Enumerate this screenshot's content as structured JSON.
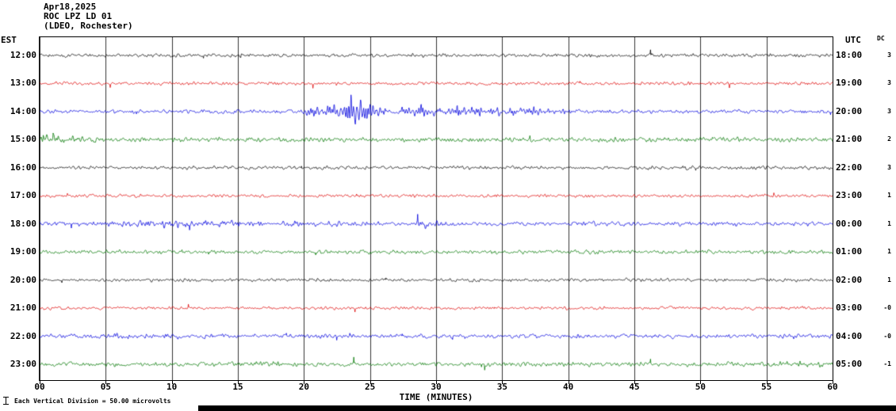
{
  "header": {
    "date": "Apr18,2025",
    "station": "ROC LPZ LD 01",
    "network": "(LDEO, Rochester)"
  },
  "axes": {
    "left_label": "EST",
    "right_label": "UTC",
    "dc_label": "DC",
    "x_label": "TIME (MINUTES)",
    "x_ticks": [
      "00",
      "05",
      "10",
      "15",
      "20",
      "25",
      "30",
      "35",
      "40",
      "45",
      "50",
      "55",
      "60"
    ]
  },
  "footer": {
    "scale_note": "Each Vertical Division =   50.00 microvolts"
  },
  "icons": {
    "scale_marker": "vertical-scale-division-bar"
  },
  "colors": {
    "black": "#000000",
    "red": "#dd0000",
    "blue": "#0000dd",
    "green": "#007700",
    "grid": "#333333"
  },
  "chart_data": {
    "type": "line",
    "title": "ROC LPZ LD 01 helicorder, Apr18,2025 (LDEO, Rochester)",
    "xlabel": "TIME (MINUTES)",
    "x_range_minutes": [
      0,
      60
    ],
    "minutes_per_row": 60,
    "vertical_division_microvolts": 50.0,
    "rows": [
      {
        "est": "12:00",
        "utc": "18:00",
        "dc": "3",
        "color": "black",
        "noise": 1.3,
        "bursts": []
      },
      {
        "est": "13:00",
        "utc": "19:00",
        "dc": "3",
        "color": "red",
        "noise": 1.25,
        "bursts": []
      },
      {
        "est": "14:00",
        "utc": "20:00",
        "dc": "3",
        "color": "blue",
        "noise": 1.5,
        "bursts": [
          {
            "start": 19.3,
            "peak": 20.6,
            "end": 22.0,
            "amp": 5
          },
          {
            "start": 21.5,
            "peak": 23.8,
            "end": 26.5,
            "amp": 13
          },
          {
            "start": 26.5,
            "peak": 28.5,
            "end": 31.0,
            "amp": 5.5
          },
          {
            "start": 30.5,
            "peak": 31.5,
            "end": 35.0,
            "amp": 4.5
          },
          {
            "start": 34.0,
            "peak": 36.0,
            "end": 41.5,
            "amp": 3
          }
        ]
      },
      {
        "est": "15:00",
        "utc": "21:00",
        "dc": "2",
        "color": "green",
        "noise": 1.7,
        "bursts": [
          {
            "start": 0,
            "peak": 0.5,
            "end": 5,
            "amp": 2.5
          }
        ]
      },
      {
        "est": "16:00",
        "utc": "22:00",
        "dc": "3",
        "color": "black",
        "noise": 1.35,
        "bursts": []
      },
      {
        "est": "17:00",
        "utc": "23:00",
        "dc": "1",
        "color": "red",
        "noise": 1.2,
        "bursts": []
      },
      {
        "est": "18:00",
        "utc": "00:00",
        "dc": "1",
        "color": "blue",
        "noise": 1.6,
        "bursts": [
          {
            "start": 0,
            "peak": 8,
            "end": 28,
            "amp": 1.8
          },
          {
            "start": 28,
            "peak": 29,
            "end": 31,
            "amp": 2.2
          }
        ]
      },
      {
        "est": "19:00",
        "utc": "01:00",
        "dc": "1",
        "color": "green",
        "noise": 1.45,
        "bursts": []
      },
      {
        "est": "20:00",
        "utc": "02:00",
        "dc": "1",
        "color": "black",
        "noise": 1.2,
        "bursts": []
      },
      {
        "est": "21:00",
        "utc": "03:00",
        "dc": "-0",
        "color": "red",
        "noise": 1.2,
        "bursts": [
          {
            "start": 56.5,
            "peak": 57,
            "end": 58,
            "amp": 1.5
          }
        ]
      },
      {
        "est": "22:00",
        "utc": "04:00",
        "dc": "-0",
        "color": "blue",
        "noise": 1.55,
        "bursts": [
          {
            "start": 0,
            "peak": 5,
            "end": 20,
            "amp": 1.0
          }
        ]
      },
      {
        "est": "23:00",
        "utc": "05:00",
        "dc": "-1",
        "color": "green",
        "noise": 1.65,
        "bursts": [
          {
            "start": 14,
            "peak": 16,
            "end": 20,
            "amp": 1.5
          },
          {
            "start": 55,
            "peak": 57.5,
            "end": 60,
            "amp": 2.0
          }
        ]
      }
    ]
  }
}
